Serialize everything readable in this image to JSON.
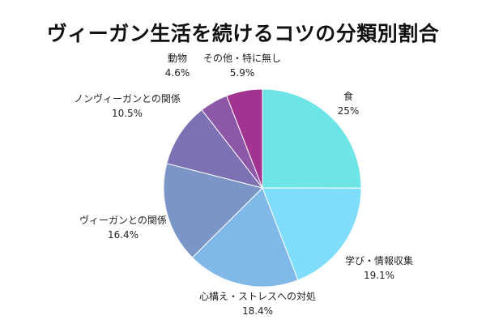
{
  "chart_data": {
    "type": "pie",
    "title": "ヴィーガン生活を続けるコツの分類別割合",
    "slices": [
      {
        "name": "食",
        "value": 25,
        "value_label": "25%",
        "color": "#6de4e6"
      },
      {
        "name": "学び・情報収集",
        "value": 19.1,
        "value_label": "19.1%",
        "color": "#7fdcfb"
      },
      {
        "name": "心構え・ストレスへの対処",
        "value": 18.4,
        "value_label": "18.4%",
        "color": "#80b8e8"
      },
      {
        "name": "ヴィーガンとの関係",
        "value": 16.4,
        "value_label": "16.4%",
        "color": "#7b96c6"
      },
      {
        "name": "ノンヴィーガンとの関係",
        "value": 10.5,
        "value_label": "10.5%",
        "color": "#7e71b3"
      },
      {
        "name": "動物",
        "value": 4.6,
        "value_label": "4.6%",
        "color": "#8e58a8"
      },
      {
        "name": "その他・特に無し",
        "value": 5.9,
        "value_label": "5.9%",
        "color": "#a03490"
      }
    ],
    "start_angle_deg": 0,
    "direction": "clockwise"
  }
}
